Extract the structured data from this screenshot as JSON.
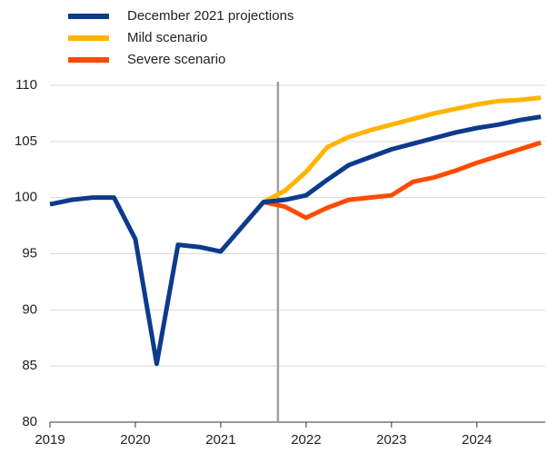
{
  "chart_data": {
    "type": "line",
    "x": [
      2019.0,
      2019.25,
      2019.5,
      2019.75,
      2020.0,
      2020.25,
      2020.5,
      2020.75,
      2021.0,
      2021.25,
      2021.5,
      2021.75,
      2022.0,
      2022.25,
      2022.5,
      2022.75,
      2023.0,
      2023.25,
      2023.5,
      2023.75,
      2024.0,
      2024.25,
      2024.5,
      2024.75
    ],
    "series": [
      {
        "name": "December 2021 projections",
        "color": "#0d3a8c",
        "values": [
          99.4,
          99.8,
          100.0,
          100.0,
          96.3,
          85.2,
          95.8,
          95.6,
          95.2,
          97.4,
          99.6,
          99.8,
          100.2,
          101.6,
          102.9,
          103.6,
          104.3,
          104.8,
          105.3,
          105.8,
          106.2,
          106.5,
          106.9,
          107.2
        ]
      },
      {
        "name": "Mild scenario",
        "color": "#ffb400",
        "values": [
          null,
          null,
          null,
          null,
          null,
          null,
          null,
          null,
          null,
          null,
          99.6,
          100.6,
          102.3,
          104.5,
          105.4,
          106.0,
          106.5,
          107.0,
          107.5,
          107.9,
          108.3,
          108.6,
          108.7,
          108.9
        ]
      },
      {
        "name": "Severe scenario",
        "color": "#ff4b00",
        "values": [
          null,
          null,
          null,
          null,
          null,
          null,
          null,
          null,
          null,
          null,
          99.6,
          99.2,
          98.2,
          99.1,
          99.8,
          100.0,
          100.2,
          101.4,
          101.8,
          102.4,
          103.1,
          103.7,
          104.3,
          104.9
        ]
      }
    ],
    "xlim": [
      2019,
      2024.8
    ],
    "xticks": [
      2019,
      2020,
      2021,
      2022,
      2023,
      2024
    ],
    "ylim": [
      80,
      110
    ],
    "yticks": [
      80,
      85,
      90,
      95,
      100,
      105,
      110
    ],
    "grid": true,
    "vline_x": 2021.67,
    "vline_color": "#a0a0a0"
  }
}
